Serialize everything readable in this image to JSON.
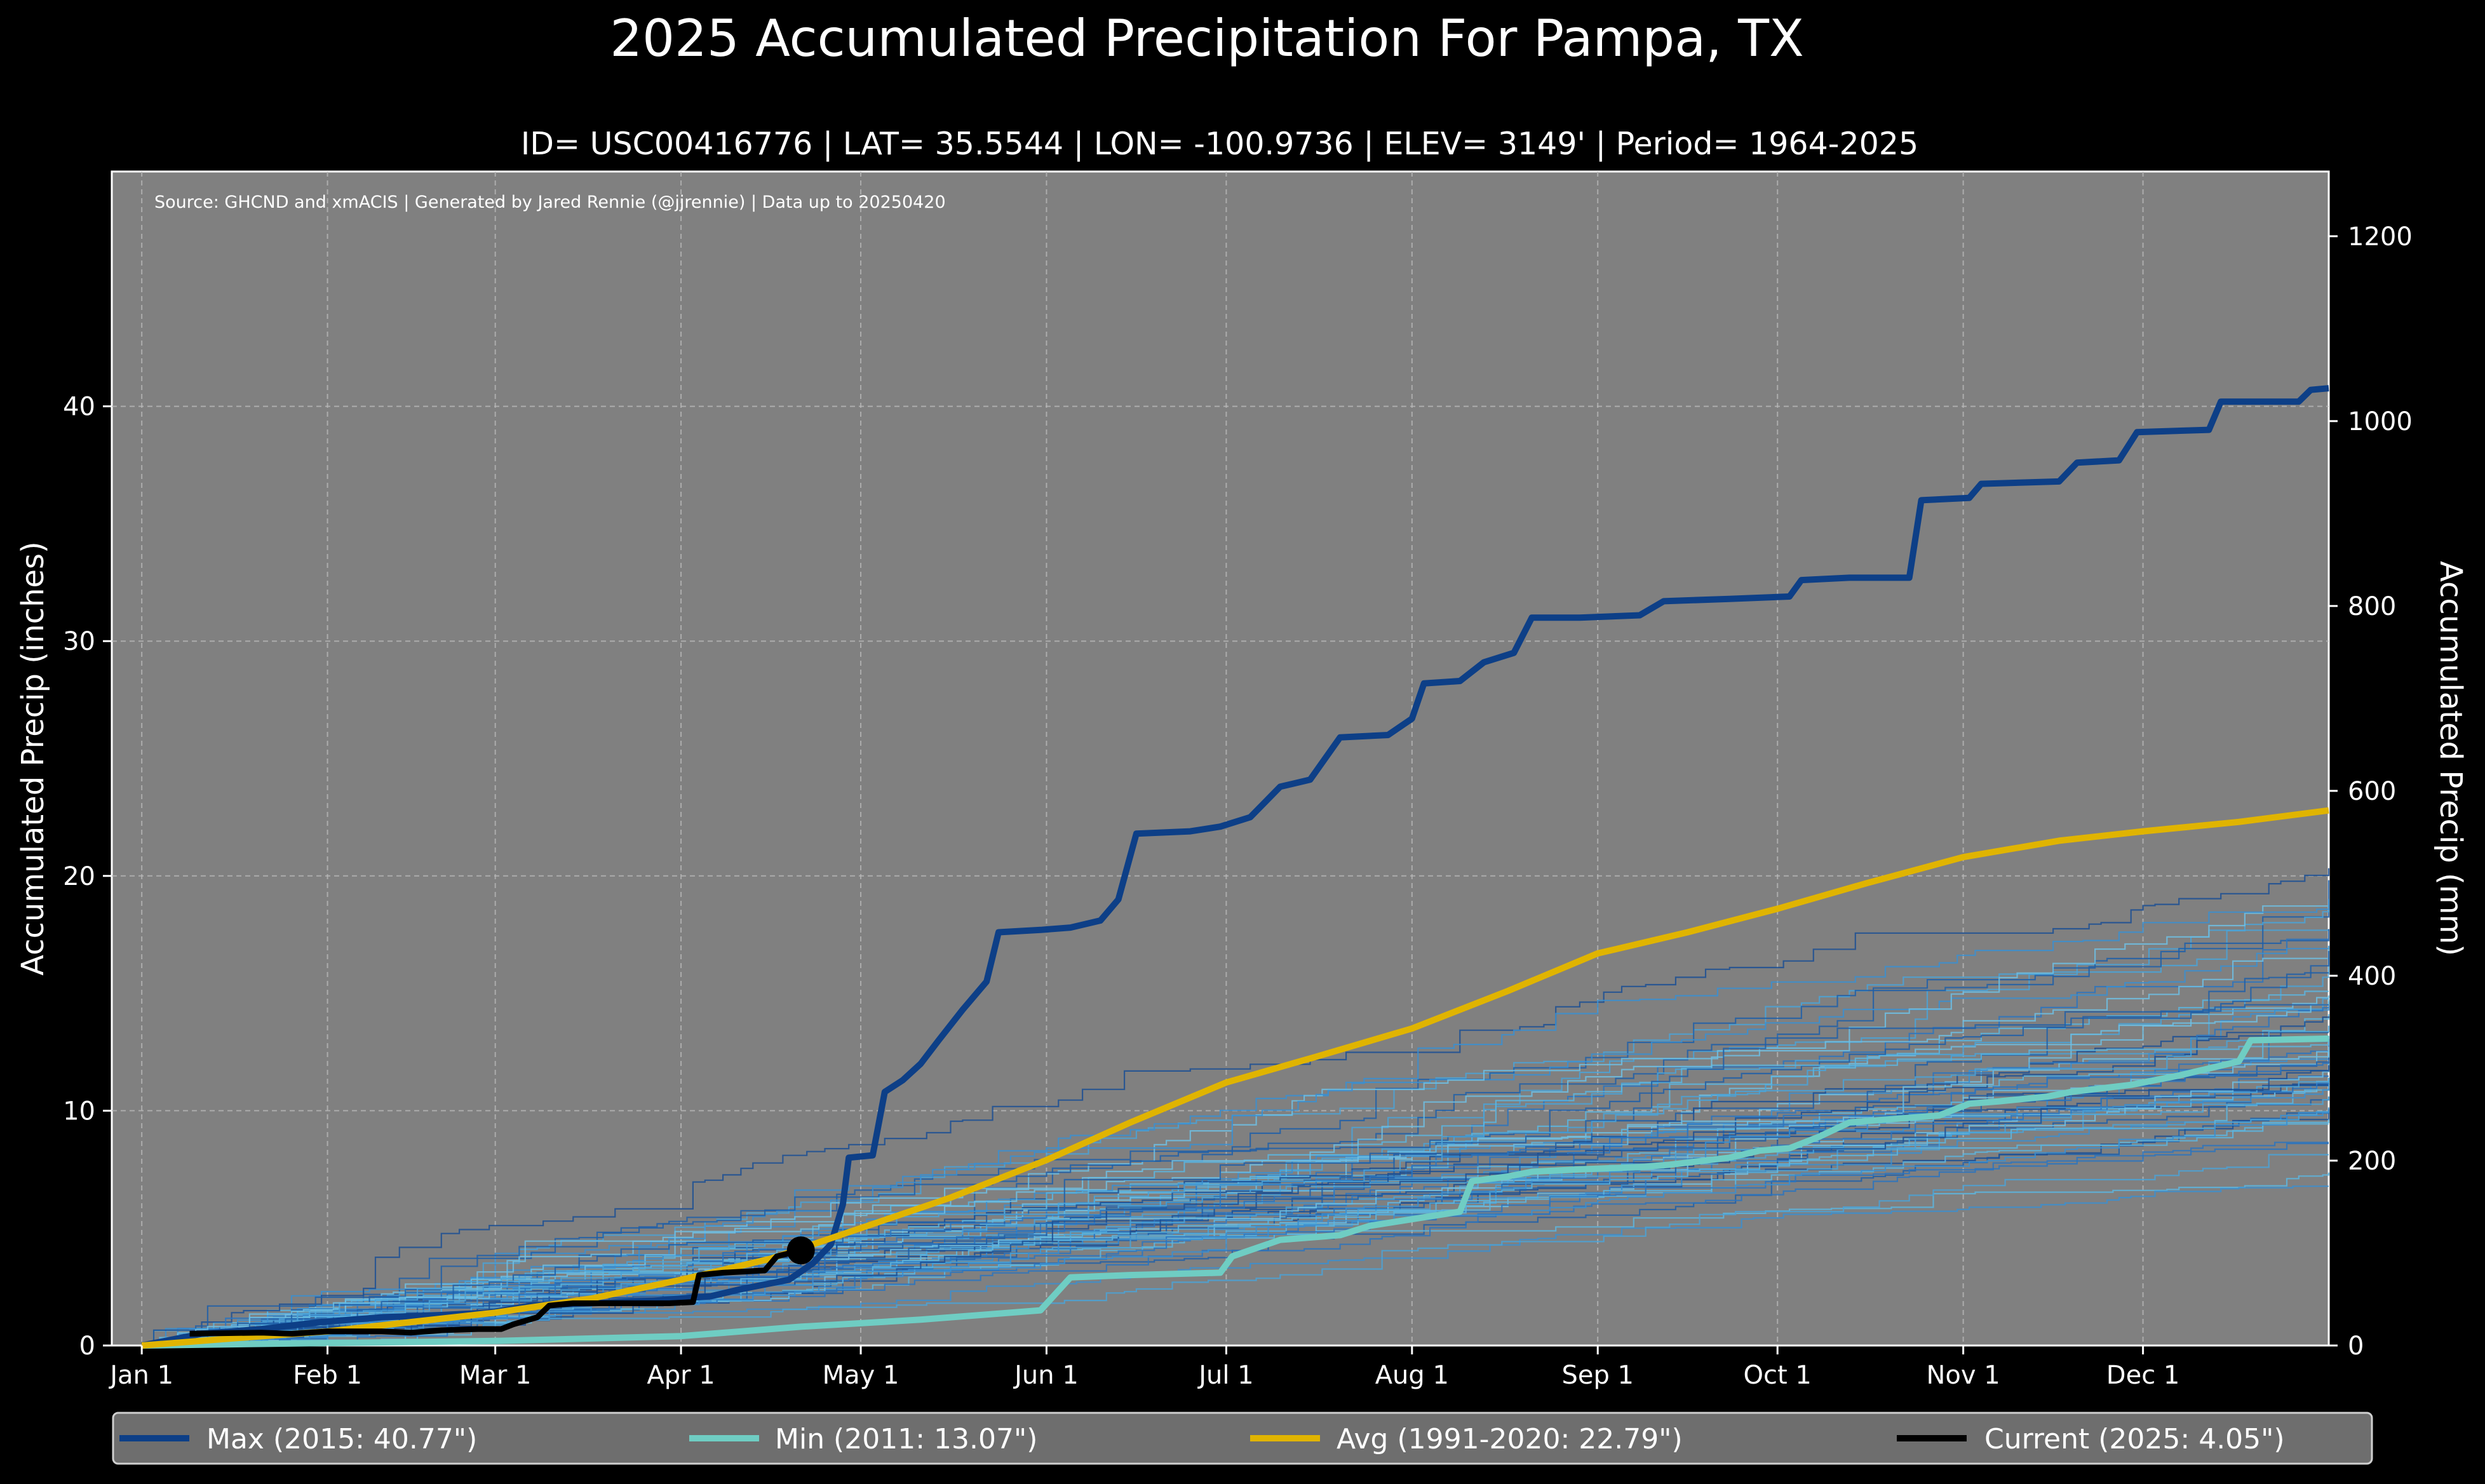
{
  "chart_data": {
    "type": "line",
    "title": "2025 Accumulated Precipitation For Pampa, TX",
    "subtitle": "ID= USC00416776 | LAT= 35.5544 | LON= -100.9736 | ELEV= 3149' | Period= 1964-2025",
    "source": "Source: GHCND and xmACIS | Generated by Jared Rennie (@jjrennie) | Data up to 20250420",
    "ylabel": "Accumulated Precip (inches)",
    "y2label": "Accumulated Precip (mm)",
    "ylim": [
      0,
      50
    ],
    "y2lim": [
      0,
      1270
    ],
    "xlim": [
      -5,
      365
    ],
    "grid": true,
    "legend_position": "bottom",
    "x_ticks": [
      {
        "day": 0,
        "label": "Jan 1"
      },
      {
        "day": 31,
        "label": "Feb 1"
      },
      {
        "day": 59,
        "label": "Mar 1"
      },
      {
        "day": 90,
        "label": "Apr 1"
      },
      {
        "day": 120,
        "label": "May 1"
      },
      {
        "day": 151,
        "label": "Jun 1"
      },
      {
        "day": 181,
        "label": "Jul 1"
      },
      {
        "day": 212,
        "label": "Aug 1"
      },
      {
        "day": 243,
        "label": "Sep 1"
      },
      {
        "day": 273,
        "label": "Oct 1"
      },
      {
        "day": 304,
        "label": "Nov 1"
      },
      {
        "day": 334,
        "label": "Dec 1"
      }
    ],
    "y_ticks": [
      0,
      10,
      20,
      30,
      40
    ],
    "y2_ticks": [
      0,
      200,
      400,
      600,
      800,
      1000,
      1200
    ],
    "series": [
      {
        "name": "Max (2015:  40.77\")",
        "color": "#0d3f87",
        "points": [
          [
            0,
            0
          ],
          [
            10,
            0.5
          ],
          [
            20,
            0.7
          ],
          [
            30,
            1.0
          ],
          [
            40,
            1.2
          ],
          [
            50,
            1.3
          ],
          [
            58,
            1.4
          ],
          [
            65,
            1.7
          ],
          [
            75,
            1.8
          ],
          [
            85,
            1.9
          ],
          [
            95,
            2.1
          ],
          [
            100,
            2.4
          ],
          [
            108,
            2.8
          ],
          [
            112,
            3.5
          ],
          [
            115,
            4.3
          ],
          [
            117,
            6.0
          ],
          [
            118,
            8.0
          ],
          [
            122,
            8.1
          ],
          [
            124,
            10.8
          ],
          [
            127,
            11.3
          ],
          [
            130,
            12.0
          ],
          [
            133,
            13.0
          ],
          [
            137,
            14.3
          ],
          [
            141,
            15.5
          ],
          [
            143,
            17.6
          ],
          [
            150,
            17.7
          ],
          [
            155,
            17.8
          ],
          [
            160,
            18.1
          ],
          [
            163,
            19.0
          ],
          [
            166,
            21.8
          ],
          [
            175,
            21.9
          ],
          [
            180,
            22.1
          ],
          [
            185,
            22.5
          ],
          [
            190,
            23.8
          ],
          [
            195,
            24.1
          ],
          [
            200,
            25.9
          ],
          [
            208,
            26.0
          ],
          [
            212,
            26.7
          ],
          [
            214,
            28.2
          ],
          [
            220,
            28.3
          ],
          [
            224,
            29.1
          ],
          [
            229,
            29.5
          ],
          [
            232,
            31.0
          ],
          [
            240,
            31.0
          ],
          [
            250,
            31.1
          ],
          [
            254,
            31.7
          ],
          [
            265,
            31.8
          ],
          [
            275,
            31.9
          ],
          [
            277,
            32.6
          ],
          [
            285,
            32.7
          ],
          [
            295,
            32.7
          ],
          [
            297,
            36.0
          ],
          [
            305,
            36.1
          ],
          [
            307,
            36.7
          ],
          [
            320,
            36.8
          ],
          [
            323,
            37.6
          ],
          [
            330,
            37.7
          ],
          [
            333,
            38.9
          ],
          [
            345,
            39.0
          ],
          [
            347,
            40.2
          ],
          [
            360,
            40.2
          ],
          [
            362,
            40.7
          ],
          [
            365,
            40.77
          ]
        ]
      },
      {
        "name": "Min (2011:  13.07\")",
        "color": "#6fcdc3",
        "points": [
          [
            0,
            0
          ],
          [
            30,
            0.1
          ],
          [
            60,
            0.2
          ],
          [
            90,
            0.4
          ],
          [
            100,
            0.6
          ],
          [
            110,
            0.8
          ],
          [
            130,
            1.1
          ],
          [
            150,
            1.5
          ],
          [
            155,
            2.9
          ],
          [
            165,
            3.0
          ],
          [
            180,
            3.1
          ],
          [
            182,
            3.8
          ],
          [
            190,
            4.5
          ],
          [
            200,
            4.7
          ],
          [
            205,
            5.1
          ],
          [
            215,
            5.5
          ],
          [
            220,
            5.7
          ],
          [
            222,
            7.0
          ],
          [
            228,
            7.2
          ],
          [
            232,
            7.4
          ],
          [
            240,
            7.5
          ],
          [
            250,
            7.6
          ],
          [
            255,
            7.7
          ],
          [
            265,
            8.0
          ],
          [
            270,
            8.3
          ],
          [
            275,
            8.4
          ],
          [
            280,
            8.9
          ],
          [
            285,
            9.5
          ],
          [
            290,
            9.6
          ],
          [
            300,
            9.8
          ],
          [
            305,
            10.3
          ],
          [
            310,
            10.4
          ],
          [
            318,
            10.6
          ],
          [
            322,
            10.8
          ],
          [
            332,
            11.1
          ],
          [
            340,
            11.5
          ],
          [
            345,
            11.8
          ],
          [
            350,
            12.1
          ],
          [
            352,
            13.0
          ],
          [
            365,
            13.07
          ]
        ]
      },
      {
        "name": "Avg (1991-2020:  22.79\")",
        "color": "#e0b400",
        "points": [
          [
            0,
            0
          ],
          [
            15,
            0.3
          ],
          [
            31,
            0.6
          ],
          [
            45,
            1.0
          ],
          [
            59,
            1.4
          ],
          [
            75,
            2.0
          ],
          [
            90,
            2.8
          ],
          [
            105,
            3.7
          ],
          [
            120,
            5.0
          ],
          [
            135,
            6.3
          ],
          [
            151,
            7.9
          ],
          [
            165,
            9.5
          ],
          [
            181,
            11.2
          ],
          [
            196,
            12.3
          ],
          [
            212,
            13.5
          ],
          [
            228,
            15.1
          ],
          [
            243,
            16.7
          ],
          [
            258,
            17.6
          ],
          [
            273,
            18.6
          ],
          [
            288,
            19.7
          ],
          [
            304,
            20.8
          ],
          [
            320,
            21.5
          ],
          [
            334,
            21.9
          ],
          [
            350,
            22.3
          ],
          [
            365,
            22.79
          ]
        ]
      },
      {
        "name": "Current (2025:   4.05\")",
        "color": "#000000",
        "points": [
          [
            8,
            0.5
          ],
          [
            20,
            0.55
          ],
          [
            25,
            0.5
          ],
          [
            31,
            0.6
          ],
          [
            40,
            0.6
          ],
          [
            45,
            0.55
          ],
          [
            50,
            0.65
          ],
          [
            56,
            0.7
          ],
          [
            60,
            0.7
          ],
          [
            62,
            0.9
          ],
          [
            66,
            1.2
          ],
          [
            68,
            1.7
          ],
          [
            72,
            1.8
          ],
          [
            80,
            1.8
          ],
          [
            88,
            1.8
          ],
          [
            92,
            1.85
          ],
          [
            93,
            3.0
          ],
          [
            97,
            3.1
          ],
          [
            104,
            3.2
          ],
          [
            106,
            3.8
          ],
          [
            110,
            4.05
          ]
        ]
      }
    ],
    "background_years_note": "1964-2024 individual years"
  }
}
